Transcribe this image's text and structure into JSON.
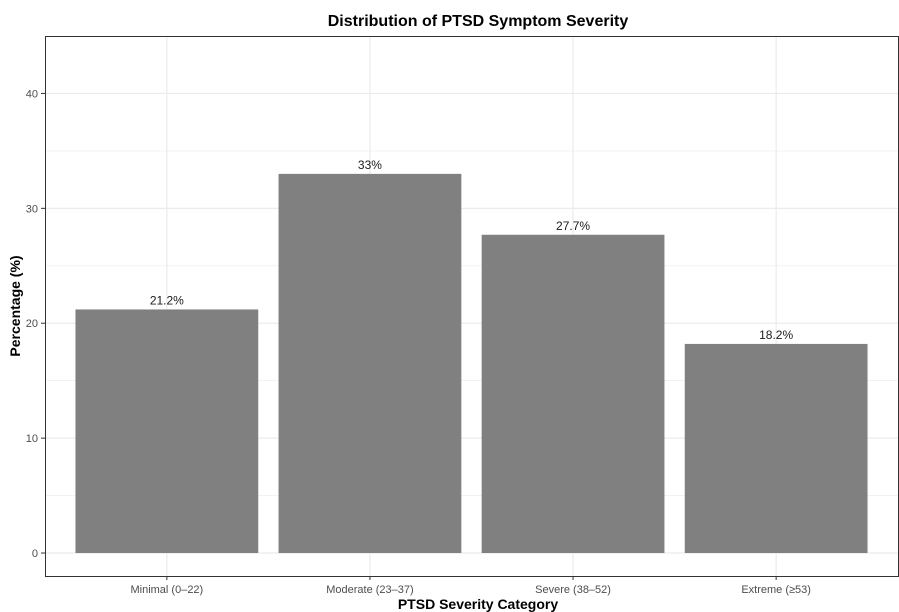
{
  "chart_data": {
    "type": "bar",
    "title": "Distribution of PTSD Symptom Severity",
    "xlabel": "PTSD Severity Category",
    "ylabel": "Percentage (%)",
    "categories": [
      "Minimal (0–22)",
      "Moderate (23–37)",
      "Severe (38–52)",
      "Extreme (≥53)"
    ],
    "values": [
      21.2,
      33,
      27.7,
      18.2
    ],
    "data_labels": [
      "21.2%",
      "33%",
      "27.7%",
      "18.2%"
    ],
    "ylim": [
      -2,
      45
    ],
    "yticks": [
      0,
      10,
      20,
      30,
      40
    ],
    "grid": true,
    "colors": {
      "bar": "#808080",
      "grid": "#ebebeb",
      "panel_border": "#333333"
    }
  }
}
